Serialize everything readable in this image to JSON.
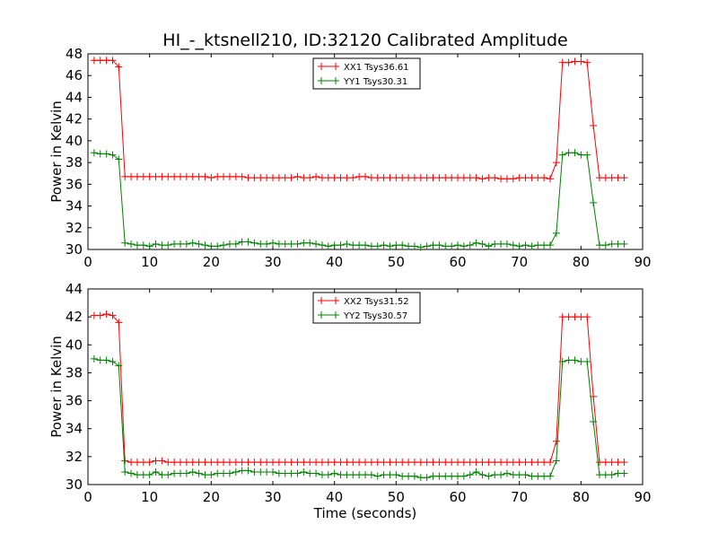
{
  "figure": {
    "title": "HI_-_ktsnell210, ID:32120 Calibrated Amplitude"
  },
  "chart_data": [
    {
      "type": "line",
      "title": "HI_-_ktsnell210, ID:32120 Calibrated Amplitude",
      "xlabel": "",
      "ylabel": "Power in Kelvin",
      "xlim": [
        0,
        90
      ],
      "ylim": [
        30,
        48
      ],
      "xticks": [
        "0",
        "10",
        "20",
        "30",
        "40",
        "50",
        "60",
        "70",
        "80",
        "90"
      ],
      "yticks": [
        "30",
        "32",
        "34",
        "36",
        "38",
        "40",
        "42",
        "44",
        "46",
        "48"
      ],
      "grid": false,
      "legend_position": "top-center",
      "x": [
        1,
        2,
        3,
        4,
        5,
        6,
        7,
        8,
        9,
        10,
        11,
        12,
        13,
        14,
        15,
        16,
        17,
        18,
        19,
        20,
        21,
        22,
        23,
        24,
        25,
        26,
        27,
        28,
        29,
        30,
        31,
        32,
        33,
        34,
        35,
        36,
        37,
        38,
        39,
        40,
        41,
        42,
        43,
        44,
        45,
        46,
        47,
        48,
        49,
        50,
        51,
        52,
        53,
        54,
        55,
        56,
        57,
        58,
        59,
        60,
        61,
        62,
        63,
        64,
        65,
        66,
        67,
        68,
        69,
        70,
        71,
        72,
        73,
        74,
        75,
        76,
        77,
        78,
        79,
        80,
        81,
        82,
        83,
        84,
        85,
        86,
        87
      ],
      "series": [
        {
          "name": "XX1 Tsys36.61",
          "color": "#ff0000",
          "values": [
            47.4,
            47.4,
            47.4,
            47.4,
            46.8,
            36.7,
            36.7,
            36.7,
            36.7,
            36.7,
            36.7,
            36.7,
            36.7,
            36.7,
            36.7,
            36.7,
            36.7,
            36.7,
            36.7,
            36.6,
            36.7,
            36.7,
            36.7,
            36.7,
            36.7,
            36.6,
            36.6,
            36.6,
            36.6,
            36.6,
            36.6,
            36.6,
            36.6,
            36.7,
            36.6,
            36.6,
            36.7,
            36.6,
            36.6,
            36.6,
            36.6,
            36.6,
            36.6,
            36.7,
            36.7,
            36.6,
            36.6,
            36.6,
            36.6,
            36.6,
            36.6,
            36.6,
            36.6,
            36.6,
            36.6,
            36.6,
            36.6,
            36.6,
            36.6,
            36.6,
            36.6,
            36.6,
            36.6,
            36.5,
            36.6,
            36.6,
            36.5,
            36.5,
            36.5,
            36.6,
            36.6,
            36.6,
            36.6,
            36.6,
            36.5,
            38.0,
            47.2,
            47.2,
            47.3,
            47.3,
            47.2,
            41.4,
            36.6,
            36.6,
            36.6,
            36.6,
            36.6
          ]
        },
        {
          "name": "YY1 Tsys30.31",
          "color": "#008000",
          "values": [
            38.9,
            38.8,
            38.8,
            38.7,
            38.3,
            30.6,
            30.5,
            30.4,
            30.4,
            30.3,
            30.5,
            30.4,
            30.4,
            30.5,
            30.5,
            30.5,
            30.6,
            30.5,
            30.4,
            30.3,
            30.3,
            30.4,
            30.5,
            30.5,
            30.7,
            30.7,
            30.6,
            30.5,
            30.5,
            30.6,
            30.5,
            30.5,
            30.5,
            30.5,
            30.6,
            30.6,
            30.5,
            30.4,
            30.3,
            30.4,
            30.4,
            30.5,
            30.4,
            30.4,
            30.4,
            30.3,
            30.3,
            30.4,
            30.3,
            30.4,
            30.4,
            30.3,
            30.3,
            30.2,
            30.3,
            30.4,
            30.4,
            30.3,
            30.3,
            30.4,
            30.3,
            30.4,
            30.6,
            30.5,
            30.3,
            30.5,
            30.5,
            30.5,
            30.4,
            30.3,
            30.4,
            30.3,
            30.4,
            30.4,
            30.4,
            31.5,
            38.7,
            38.9,
            38.9,
            38.7,
            38.7,
            34.3,
            30.4,
            30.4,
            30.5,
            30.5,
            30.5
          ]
        }
      ]
    },
    {
      "type": "line",
      "title": "",
      "xlabel": "Time (seconds)",
      "ylabel": "Power in Kelvin",
      "xlim": [
        0,
        90
      ],
      "ylim": [
        30,
        44
      ],
      "xticks": [
        "0",
        "10",
        "20",
        "30",
        "40",
        "50",
        "60",
        "70",
        "80",
        "90"
      ],
      "yticks": [
        "30",
        "32",
        "34",
        "36",
        "38",
        "40",
        "42",
        "44"
      ],
      "grid": false,
      "legend_position": "top-center",
      "x": [
        1,
        2,
        3,
        4,
        5,
        6,
        7,
        8,
        9,
        10,
        11,
        12,
        13,
        14,
        15,
        16,
        17,
        18,
        19,
        20,
        21,
        22,
        23,
        24,
        25,
        26,
        27,
        28,
        29,
        30,
        31,
        32,
        33,
        34,
        35,
        36,
        37,
        38,
        39,
        40,
        41,
        42,
        43,
        44,
        45,
        46,
        47,
        48,
        49,
        50,
        51,
        52,
        53,
        54,
        55,
        56,
        57,
        58,
        59,
        60,
        61,
        62,
        63,
        64,
        65,
        66,
        67,
        68,
        69,
        70,
        71,
        72,
        73,
        74,
        75,
        76,
        77,
        78,
        79,
        80,
        81,
        82,
        83,
        84,
        85,
        86,
        87
      ],
      "series": [
        {
          "name": "XX2 Tsys31.52",
          "color": "#ff0000",
          "values": [
            42.1,
            42.1,
            42.2,
            42.1,
            41.6,
            31.7,
            31.6,
            31.6,
            31.6,
            31.6,
            31.7,
            31.7,
            31.6,
            31.6,
            31.6,
            31.6,
            31.6,
            31.6,
            31.6,
            31.6,
            31.6,
            31.6,
            31.6,
            31.6,
            31.6,
            31.6,
            31.6,
            31.6,
            31.6,
            31.6,
            31.6,
            31.6,
            31.6,
            31.6,
            31.6,
            31.6,
            31.6,
            31.6,
            31.6,
            31.6,
            31.6,
            31.6,
            31.6,
            31.6,
            31.6,
            31.6,
            31.6,
            31.6,
            31.6,
            31.6,
            31.6,
            31.6,
            31.6,
            31.6,
            31.6,
            31.6,
            31.6,
            31.6,
            31.6,
            31.6,
            31.6,
            31.6,
            31.6,
            31.6,
            31.6,
            31.6,
            31.6,
            31.6,
            31.6,
            31.6,
            31.6,
            31.6,
            31.6,
            31.6,
            31.6,
            33.1,
            42.0,
            42.0,
            42.0,
            42.0,
            42.0,
            36.3,
            31.6,
            31.6,
            31.6,
            31.6,
            31.6
          ]
        },
        {
          "name": "YY2 Tsys30.57",
          "color": "#008000",
          "values": [
            39.0,
            38.9,
            38.9,
            38.8,
            38.5,
            30.9,
            30.8,
            30.7,
            30.7,
            30.7,
            30.9,
            30.7,
            30.7,
            30.8,
            30.8,
            30.8,
            30.9,
            30.8,
            30.7,
            30.7,
            30.8,
            30.8,
            30.8,
            30.9,
            31.0,
            31.0,
            30.9,
            30.9,
            30.9,
            30.9,
            30.8,
            30.8,
            30.8,
            30.8,
            30.9,
            30.8,
            30.8,
            30.7,
            30.7,
            30.8,
            30.7,
            30.7,
            30.7,
            30.7,
            30.7,
            30.7,
            30.6,
            30.7,
            30.7,
            30.7,
            30.6,
            30.6,
            30.6,
            30.5,
            30.5,
            30.6,
            30.6,
            30.6,
            30.6,
            30.6,
            30.6,
            30.7,
            30.9,
            30.7,
            30.6,
            30.7,
            30.7,
            30.8,
            30.7,
            30.7,
            30.7,
            30.6,
            30.6,
            30.6,
            30.6,
            31.7,
            38.8,
            38.9,
            38.9,
            38.8,
            38.8,
            34.5,
            30.7,
            30.7,
            30.7,
            30.8,
            30.8
          ]
        }
      ]
    }
  ]
}
